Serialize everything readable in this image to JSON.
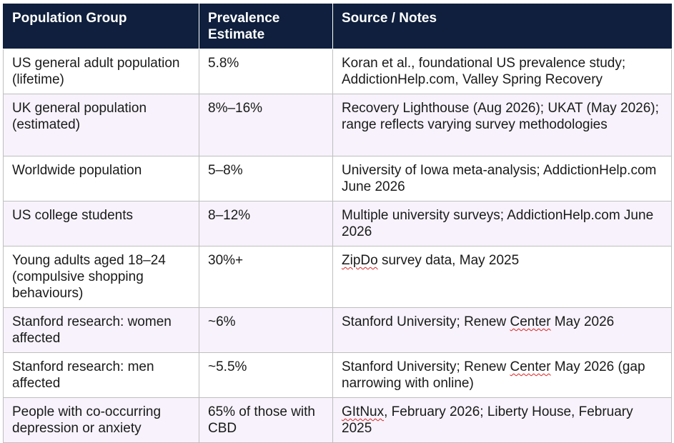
{
  "table": {
    "headers": [
      "Population Group",
      "Prevalence Estimate",
      "Source / Notes"
    ],
    "rows": [
      {
        "group": "US general adult population (lifetime)",
        "estimate": "5.8%",
        "source_parts": [
          "Koran et al., foundational US prevalence study; AddictionHelp.com, Valley Spring Recovery"
        ]
      },
      {
        "group": "UK general population (estimated)",
        "estimate": "8%–16%",
        "source_parts": [
          "Recovery Lighthouse (Aug 2026); UKAT (May 2026); range reflects varying survey methodologies"
        ]
      },
      {
        "group": "Worldwide population",
        "estimate": "5–8%",
        "source_parts": [
          "University of Iowa meta-analysis; AddictionHelp.com June 2026"
        ]
      },
      {
        "group": "US college students",
        "estimate": "8–12%",
        "source_parts": [
          "Multiple university surveys; AddictionHelp.com June 2026"
        ]
      },
      {
        "group": "Young adults aged 18–24 (compulsive shopping behaviours)",
        "estimate": "30%+",
        "source_parts": [
          "ZipDo",
          " survey data, May 2025"
        ]
      },
      {
        "group": "Stanford research: women affected",
        "estimate": "~6%",
        "source_parts": [
          "Stanford University; Renew ",
          "Center",
          " May 2026"
        ]
      },
      {
        "group": "Stanford research: men affected",
        "estimate": "~5.5%",
        "source_parts": [
          "Stanford University; Renew ",
          "Center",
          " May 2026 (gap narrowing with online)"
        ]
      },
      {
        "group": "People with co-occurring depression or anxiety",
        "estimate": "65% of those with CBD",
        "source_parts": [
          "GItNux",
          ", February 2026; Liberty House, February 2025"
        ]
      }
    ]
  },
  "colors": {
    "header_bg": "#0f1f3d",
    "header_text": "#ffffff",
    "row_alt_bg": "#f7f2fb",
    "border": "#bfbfbf",
    "spellcheck_underline": "#dd2222"
  }
}
